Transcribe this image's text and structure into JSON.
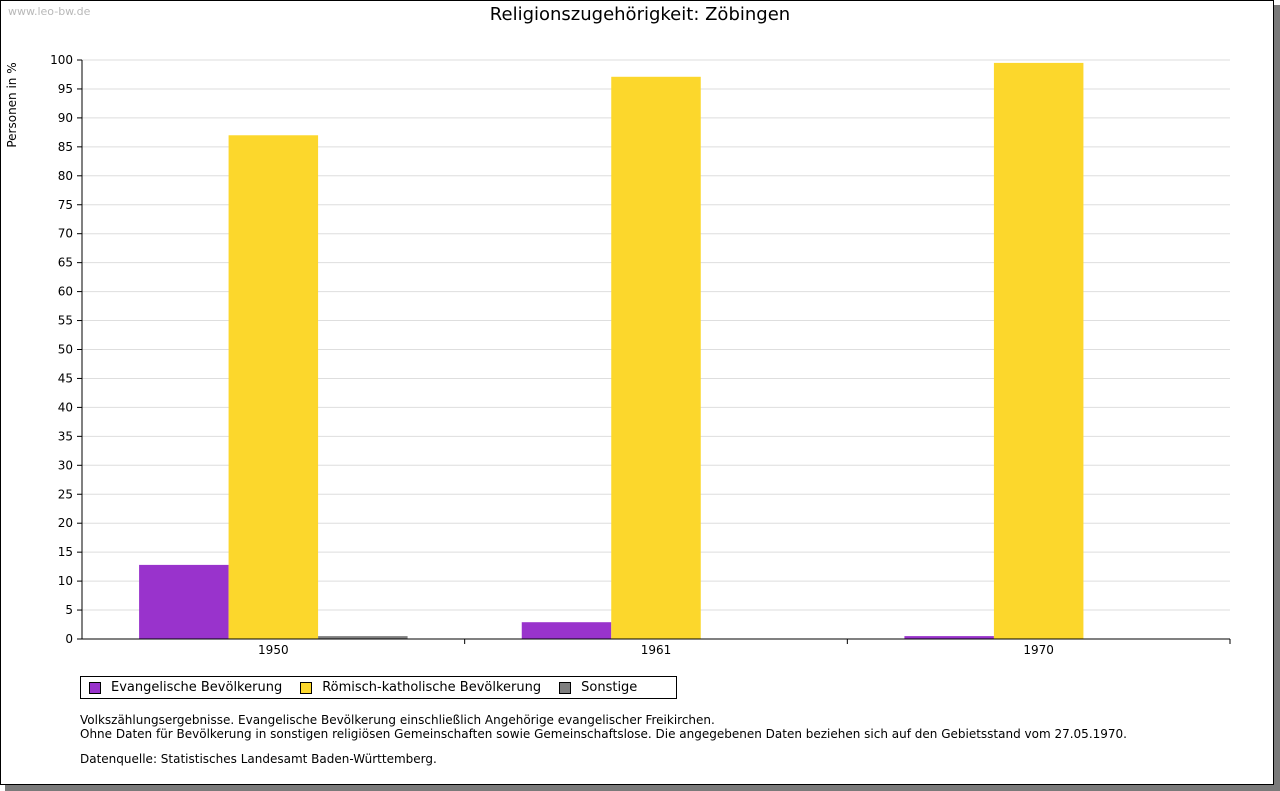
{
  "watermark": "www.leo-bw.de",
  "chart_data": {
    "type": "bar",
    "title": "Religionszugehörigkeit: Zöbingen",
    "xlabel": "",
    "ylabel": "Personen in %",
    "ylim": [
      0,
      100
    ],
    "yticks": [
      "0",
      "5",
      "10",
      "15",
      "20",
      "25",
      "30",
      "35",
      "40",
      "45",
      "50",
      "55",
      "60",
      "65",
      "70",
      "75",
      "80",
      "85",
      "90",
      "95",
      "100"
    ],
    "categories": [
      "1950",
      "1961",
      "1970"
    ],
    "series": [
      {
        "name": "Evangelische Bevölkerung",
        "color": "#9933cc",
        "values": [
          12.8,
          2.9,
          0.5
        ]
      },
      {
        "name": "Römisch-katholische Bevölkerung",
        "color": "#fcd72c",
        "values": [
          87.0,
          97.1,
          99.5
        ]
      },
      {
        "name": "Sonstige",
        "color": "#7f7f7f",
        "values": [
          0.5,
          0,
          0
        ]
      }
    ],
    "legend_position": "bottom-left"
  },
  "notes": [
    "Volkszählungsergebnisse. Evangelische Bevölkerung einschließlich Angehörige evangelischer Freikirchen.",
    "Ohne Daten für Bevölkerung in sonstigen religiösen Gemeinschaften sowie Gemeinschaftslose. Die angegebenen Daten beziehen sich auf den Gebietsstand vom 27.05.1970."
  ],
  "source": "Datenquelle: Statistisches Landesamt Baden-Württemberg."
}
